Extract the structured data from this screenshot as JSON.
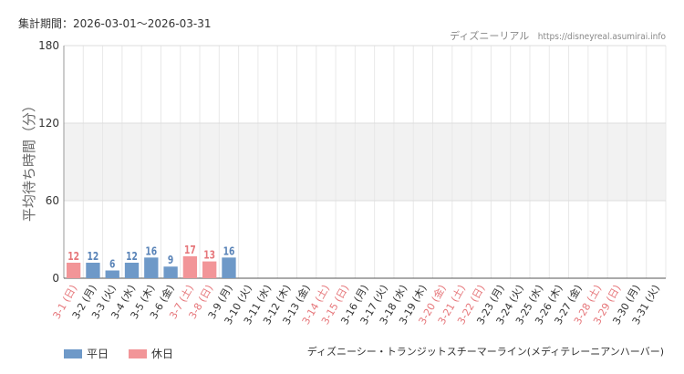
{
  "header": {
    "period": "集計期間：2026-03-01〜2026-03-31",
    "brand_name": "ディズニーリアル",
    "brand_url": "https://disneyreal.asumirai.info"
  },
  "facility": "ディズニーシー・トランジットスチーマーライン(メディテレーニアンハーバー)",
  "legend": [
    {
      "label": "平日",
      "color": "#6e99c8"
    },
    {
      "label": "休日",
      "color": "#f29598"
    }
  ],
  "chart_data": {
    "type": "bar",
    "ylabel": "平均待ち時間（分）",
    "ylim": [
      0,
      180
    ],
    "yticks": [
      "0",
      "60",
      "120",
      "180"
    ],
    "shaded_band": [
      60,
      120
    ],
    "colors": {
      "weekday": "#6e99c8",
      "holiday": "#f29598",
      "weekday_label": "#5a84b8",
      "holiday_label": "#e6777b"
    },
    "categories": [
      "3-1 (日)",
      "3-2 (月)",
      "3-3 (火)",
      "3-4 (水)",
      "3-5 (木)",
      "3-6 (金)",
      "3-7 (土)",
      "3-8 (日)",
      "3-9 (月)",
      "3-10 (火)",
      "3-11 (水)",
      "3-12 (木)",
      "3-13 (金)",
      "3-14 (土)",
      "3-15 (日)",
      "3-16 (月)",
      "3-17 (火)",
      "3-18 (水)",
      "3-19 (木)",
      "3-20 (金)",
      "3-21 (土)",
      "3-22 (日)",
      "3-23 (月)",
      "3-24 (火)",
      "3-25 (水)",
      "3-26 (木)",
      "3-27 (金)",
      "3-28 (土)",
      "3-29 (日)",
      "3-30 (月)",
      "3-31 (火)"
    ],
    "holiday": [
      true,
      false,
      false,
      false,
      false,
      false,
      true,
      true,
      false,
      false,
      false,
      false,
      false,
      true,
      true,
      false,
      false,
      false,
      false,
      true,
      true,
      true,
      false,
      false,
      false,
      false,
      false,
      true,
      true,
      false,
      false
    ],
    "values": [
      12,
      12,
      6,
      12,
      16,
      9,
      17,
      13,
      16,
      null,
      null,
      null,
      null,
      null,
      null,
      null,
      null,
      null,
      null,
      null,
      null,
      null,
      null,
      null,
      null,
      null,
      null,
      null,
      null,
      null,
      null
    ]
  }
}
